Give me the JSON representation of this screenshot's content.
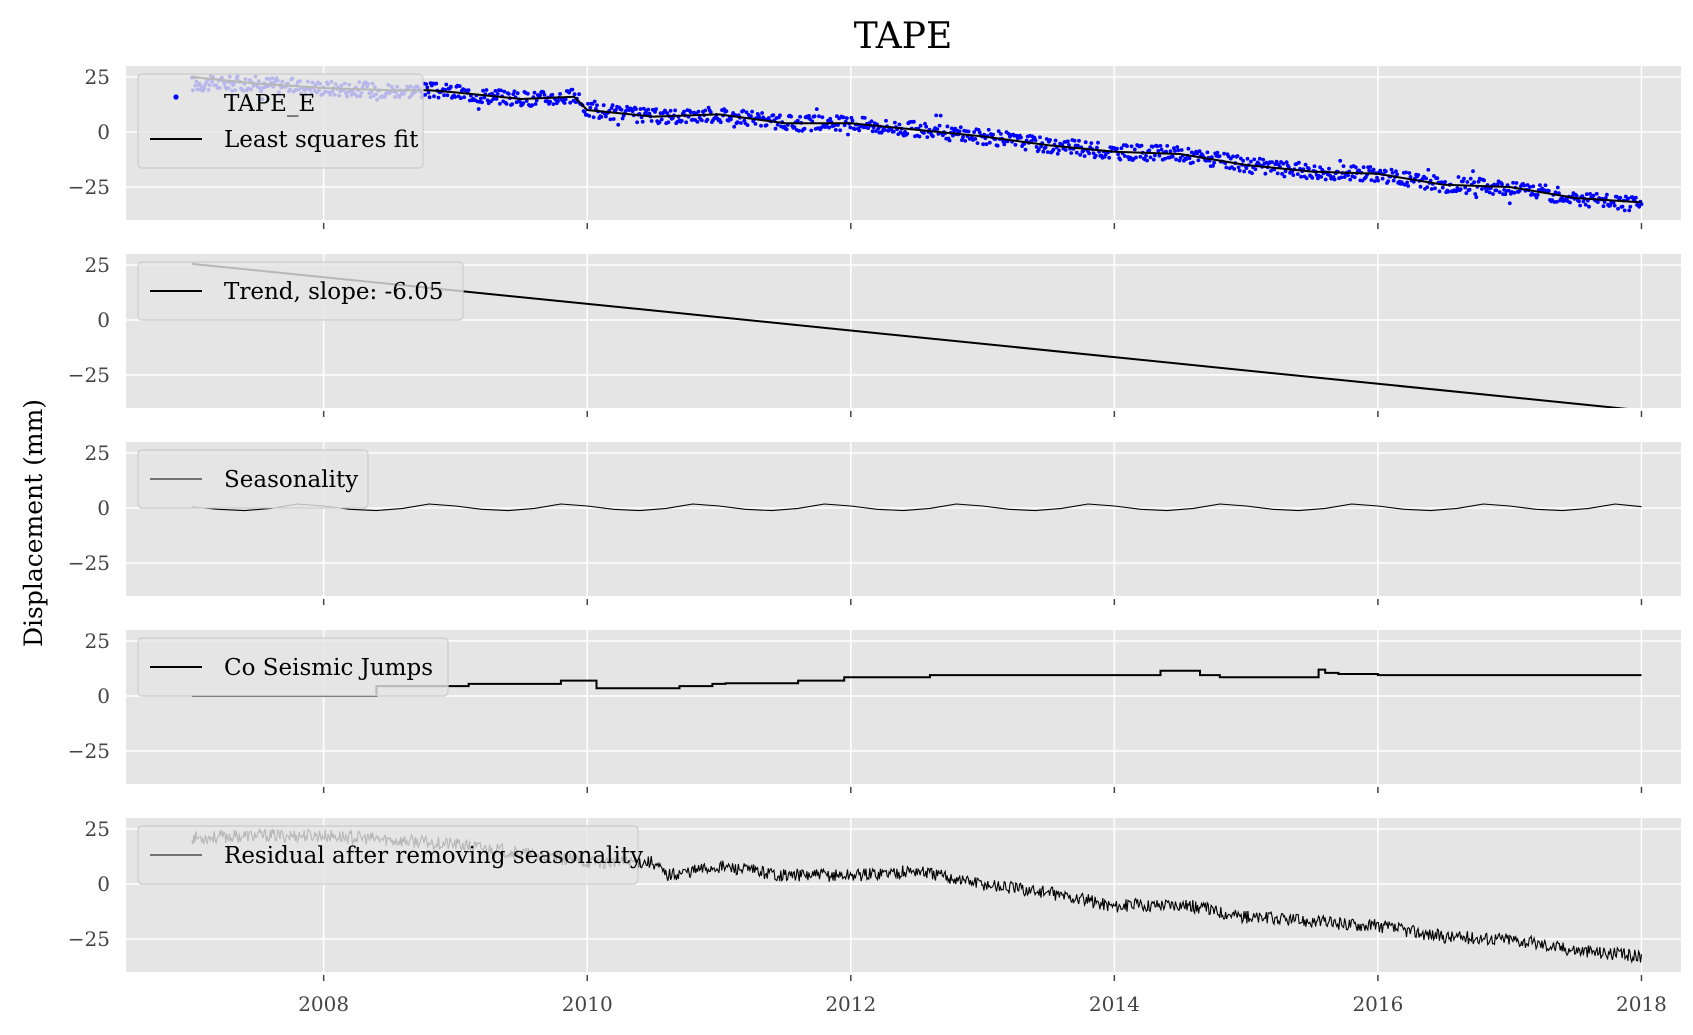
{
  "title": "TAPE",
  "ylabel": "Displacement (mm)",
  "colors": {
    "background": "#e5e5e5",
    "grid": "#ffffff",
    "scatter": "#0000ff",
    "line": "#000000"
  },
  "x_ticks": [
    "2008",
    "2010",
    "2012",
    "2014",
    "2016",
    "2018"
  ],
  "y_ticks": [
    "25",
    "0",
    "−25"
  ],
  "chart_data": [
    {
      "type": "scatter",
      "panel": 1,
      "xlim": [
        2006.5,
        2018.3
      ],
      "ylim": [
        -40,
        30
      ],
      "grid": true,
      "legend_position": "upper-left",
      "series": [
        {
          "name": "TAPE_E",
          "style": "scatter",
          "color": "#0000ff",
          "x": [
            2007.0,
            2007.5,
            2008.0,
            2008.5,
            2008.8,
            2009.0,
            2009.5,
            2009.9,
            2010.0,
            2010.5,
            2011.0,
            2011.5,
            2012.0,
            2012.5,
            2013.0,
            2013.5,
            2014.0,
            2014.5,
            2015.0,
            2015.5,
            2016.0,
            2016.5,
            2017.0,
            2017.5,
            2018.0
          ],
          "y": [
            22,
            22,
            20,
            19,
            19,
            18,
            15,
            16,
            10,
            7,
            8,
            4,
            4,
            1,
            -2,
            -6,
            -9,
            -10,
            -15,
            -18,
            -19,
            -24,
            -25,
            -30,
            -33
          ]
        },
        {
          "name": "Least squares fit",
          "style": "line",
          "color": "#000000",
          "x": [
            2007.0,
            2007.5,
            2008.0,
            2008.5,
            2008.8,
            2009.0,
            2009.5,
            2009.9,
            2010.0,
            2010.5,
            2011.0,
            2011.5,
            2012.0,
            2012.5,
            2013.0,
            2013.5,
            2014.0,
            2014.5,
            2015.0,
            2015.5,
            2016.0,
            2016.5,
            2017.0,
            2017.5,
            2018.0
          ],
          "y": [
            25,
            22,
            20,
            19,
            19,
            18,
            15,
            16,
            10,
            7,
            8,
            4,
            4,
            1,
            -2,
            -6,
            -9,
            -10,
            -15,
            -18,
            -19,
            -24,
            -25,
            -30,
            -32
          ]
        }
      ]
    },
    {
      "type": "line",
      "panel": 2,
      "xlim": [
        2006.5,
        2018.3
      ],
      "ylim": [
        -40,
        30
      ],
      "grid": true,
      "legend_position": "upper-left",
      "series": [
        {
          "name": "Trend, slope: -6.05",
          "color": "#000000",
          "x": [
            2007.0,
            2018.0
          ],
          "y": [
            25.5,
            -41.1
          ]
        }
      ]
    },
    {
      "type": "line",
      "panel": 3,
      "xlim": [
        2006.5,
        2018.3
      ],
      "ylim": [
        -40,
        30
      ],
      "grid": true,
      "legend_position": "upper-left",
      "series": [
        {
          "name": "Seasonality",
          "color": "#000000",
          "x": [
            2007.0,
            2007.2,
            2007.4,
            2007.6,
            2007.8,
            2008.0,
            2008.2,
            2008.4,
            2008.6,
            2008.8,
            2009.0,
            2009.2,
            2009.4,
            2009.6,
            2009.8,
            2010.0,
            2010.2,
            2010.4,
            2010.6,
            2010.8,
            2011.0,
            2011.2,
            2011.4,
            2011.6,
            2011.8,
            2012.0,
            2012.2,
            2012.4,
            2012.6,
            2012.8,
            2013.0,
            2013.2,
            2013.4,
            2013.6,
            2013.8,
            2014.0,
            2014.2,
            2014.4,
            2014.6,
            2014.8,
            2015.0,
            2015.2,
            2015.4,
            2015.6,
            2015.8,
            2016.0,
            2016.2,
            2016.4,
            2016.6,
            2016.8,
            2017.0,
            2017.2,
            2017.4,
            2017.6,
            2017.8,
            2018.0
          ],
          "y": [
            0.5,
            -0.6,
            -1.2,
            -0.2,
            1.8,
            0.9,
            -0.6,
            -1.2,
            -0.2,
            1.8,
            0.9,
            -0.6,
            -1.2,
            -0.2,
            1.8,
            0.9,
            -0.6,
            -1.2,
            -0.2,
            1.8,
            0.9,
            -0.6,
            -1.2,
            -0.2,
            1.8,
            0.9,
            -0.6,
            -1.2,
            -0.2,
            1.8,
            0.9,
            -0.6,
            -1.2,
            -0.2,
            1.8,
            0.9,
            -0.6,
            -1.2,
            -0.2,
            1.8,
            0.9,
            -0.6,
            -1.2,
            -0.2,
            1.8,
            0.9,
            -0.6,
            -1.2,
            -0.2,
            1.8,
            0.9,
            -0.6,
            -1.2,
            -0.2,
            1.8,
            0.6
          ]
        }
      ]
    },
    {
      "type": "line",
      "panel": 4,
      "xlim": [
        2006.5,
        2018.3
      ],
      "ylim": [
        -40,
        30
      ],
      "grid": true,
      "legend_position": "upper-left",
      "series": [
        {
          "name": "Co Seismic Jumps",
          "color": "#000000",
          "step": true,
          "x": [
            2007.0,
            2008.4,
            2009.1,
            2009.8,
            2010.07,
            2010.7,
            2010.95,
            2011.05,
            2011.6,
            2011.95,
            2012.6,
            2014.35,
            2014.65,
            2014.8,
            2015.55,
            2015.6,
            2015.7,
            2016.0,
            2018.0
          ],
          "y": [
            0,
            4.5,
            5.5,
            7,
            3.5,
            4.5,
            5.5,
            5.8,
            7,
            8.5,
            9.5,
            11.5,
            9.5,
            8.5,
            12,
            10.5,
            10,
            9.5,
            9.5
          ]
        }
      ]
    },
    {
      "type": "line",
      "panel": 5,
      "xlim": [
        2006.5,
        2018.3
      ],
      "ylim": [
        -40,
        30
      ],
      "grid": true,
      "legend_position": "upper-left",
      "series": [
        {
          "name": "Residual after removing seasonality",
          "color": "#000000",
          "x": [
            2007.0,
            2007.5,
            2008.0,
            2008.5,
            2009.0,
            2009.5,
            2010.0,
            2010.5,
            2010.6,
            2011.0,
            2011.5,
            2012.0,
            2012.5,
            2013.0,
            2013.5,
            2014.0,
            2014.5,
            2015.0,
            2015.5,
            2016.0,
            2016.5,
            2017.0,
            2017.5,
            2018.0
          ],
          "y": [
            21,
            22,
            22,
            20,
            18,
            14,
            10,
            10,
            4,
            8,
            4,
            4,
            6,
            0,
            -4,
            -10,
            -9,
            -15,
            -17,
            -19,
            -24,
            -25,
            -30,
            -33
          ]
        }
      ]
    }
  ]
}
